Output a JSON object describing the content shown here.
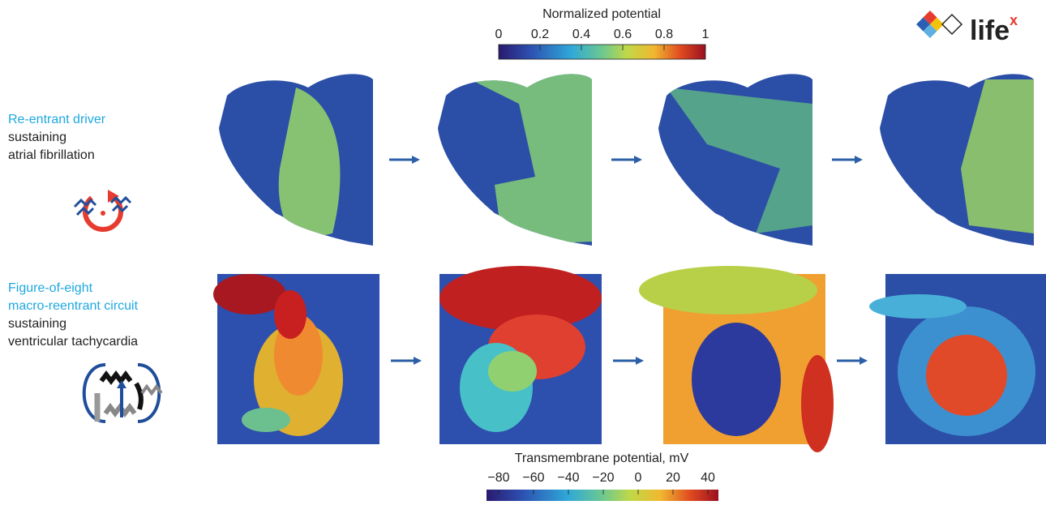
{
  "top_colorbar": {
    "title": "Normalized potential",
    "lim": [
      0,
      1
    ],
    "ticks": [
      0,
      0.2,
      0.4,
      0.6,
      0.8,
      1
    ]
  },
  "bottom_colorbar": {
    "title": "Transmembrane potential, mV",
    "lim": [
      -80,
      40
    ],
    "ticks": [
      {
        "value": -80,
        "label": "−80"
      },
      {
        "value": -60,
        "label": "−60"
      },
      {
        "value": -40,
        "label": "−40"
      },
      {
        "value": -20,
        "label": "−20"
      },
      0,
      20,
      40
    ]
  },
  "rows": [
    {
      "lines": [
        {
          "text": "Re-entrant driver",
          "highlight": true
        },
        {
          "text": "sustaining",
          "highlight": false
        },
        {
          "text": "atrial fibrillation",
          "highlight": false
        }
      ]
    },
    {
      "lines": [
        {
          "text": "Figure-of-eight",
          "highlight": true
        },
        {
          "text": "macro-reentrant circuit",
          "highlight": true
        },
        {
          "text": "sustaining",
          "highlight": false
        },
        {
          "text": "ventricular tachycardia",
          "highlight": false
        }
      ]
    }
  ],
  "logo": {
    "text": "life",
    "superscript": "x"
  }
}
